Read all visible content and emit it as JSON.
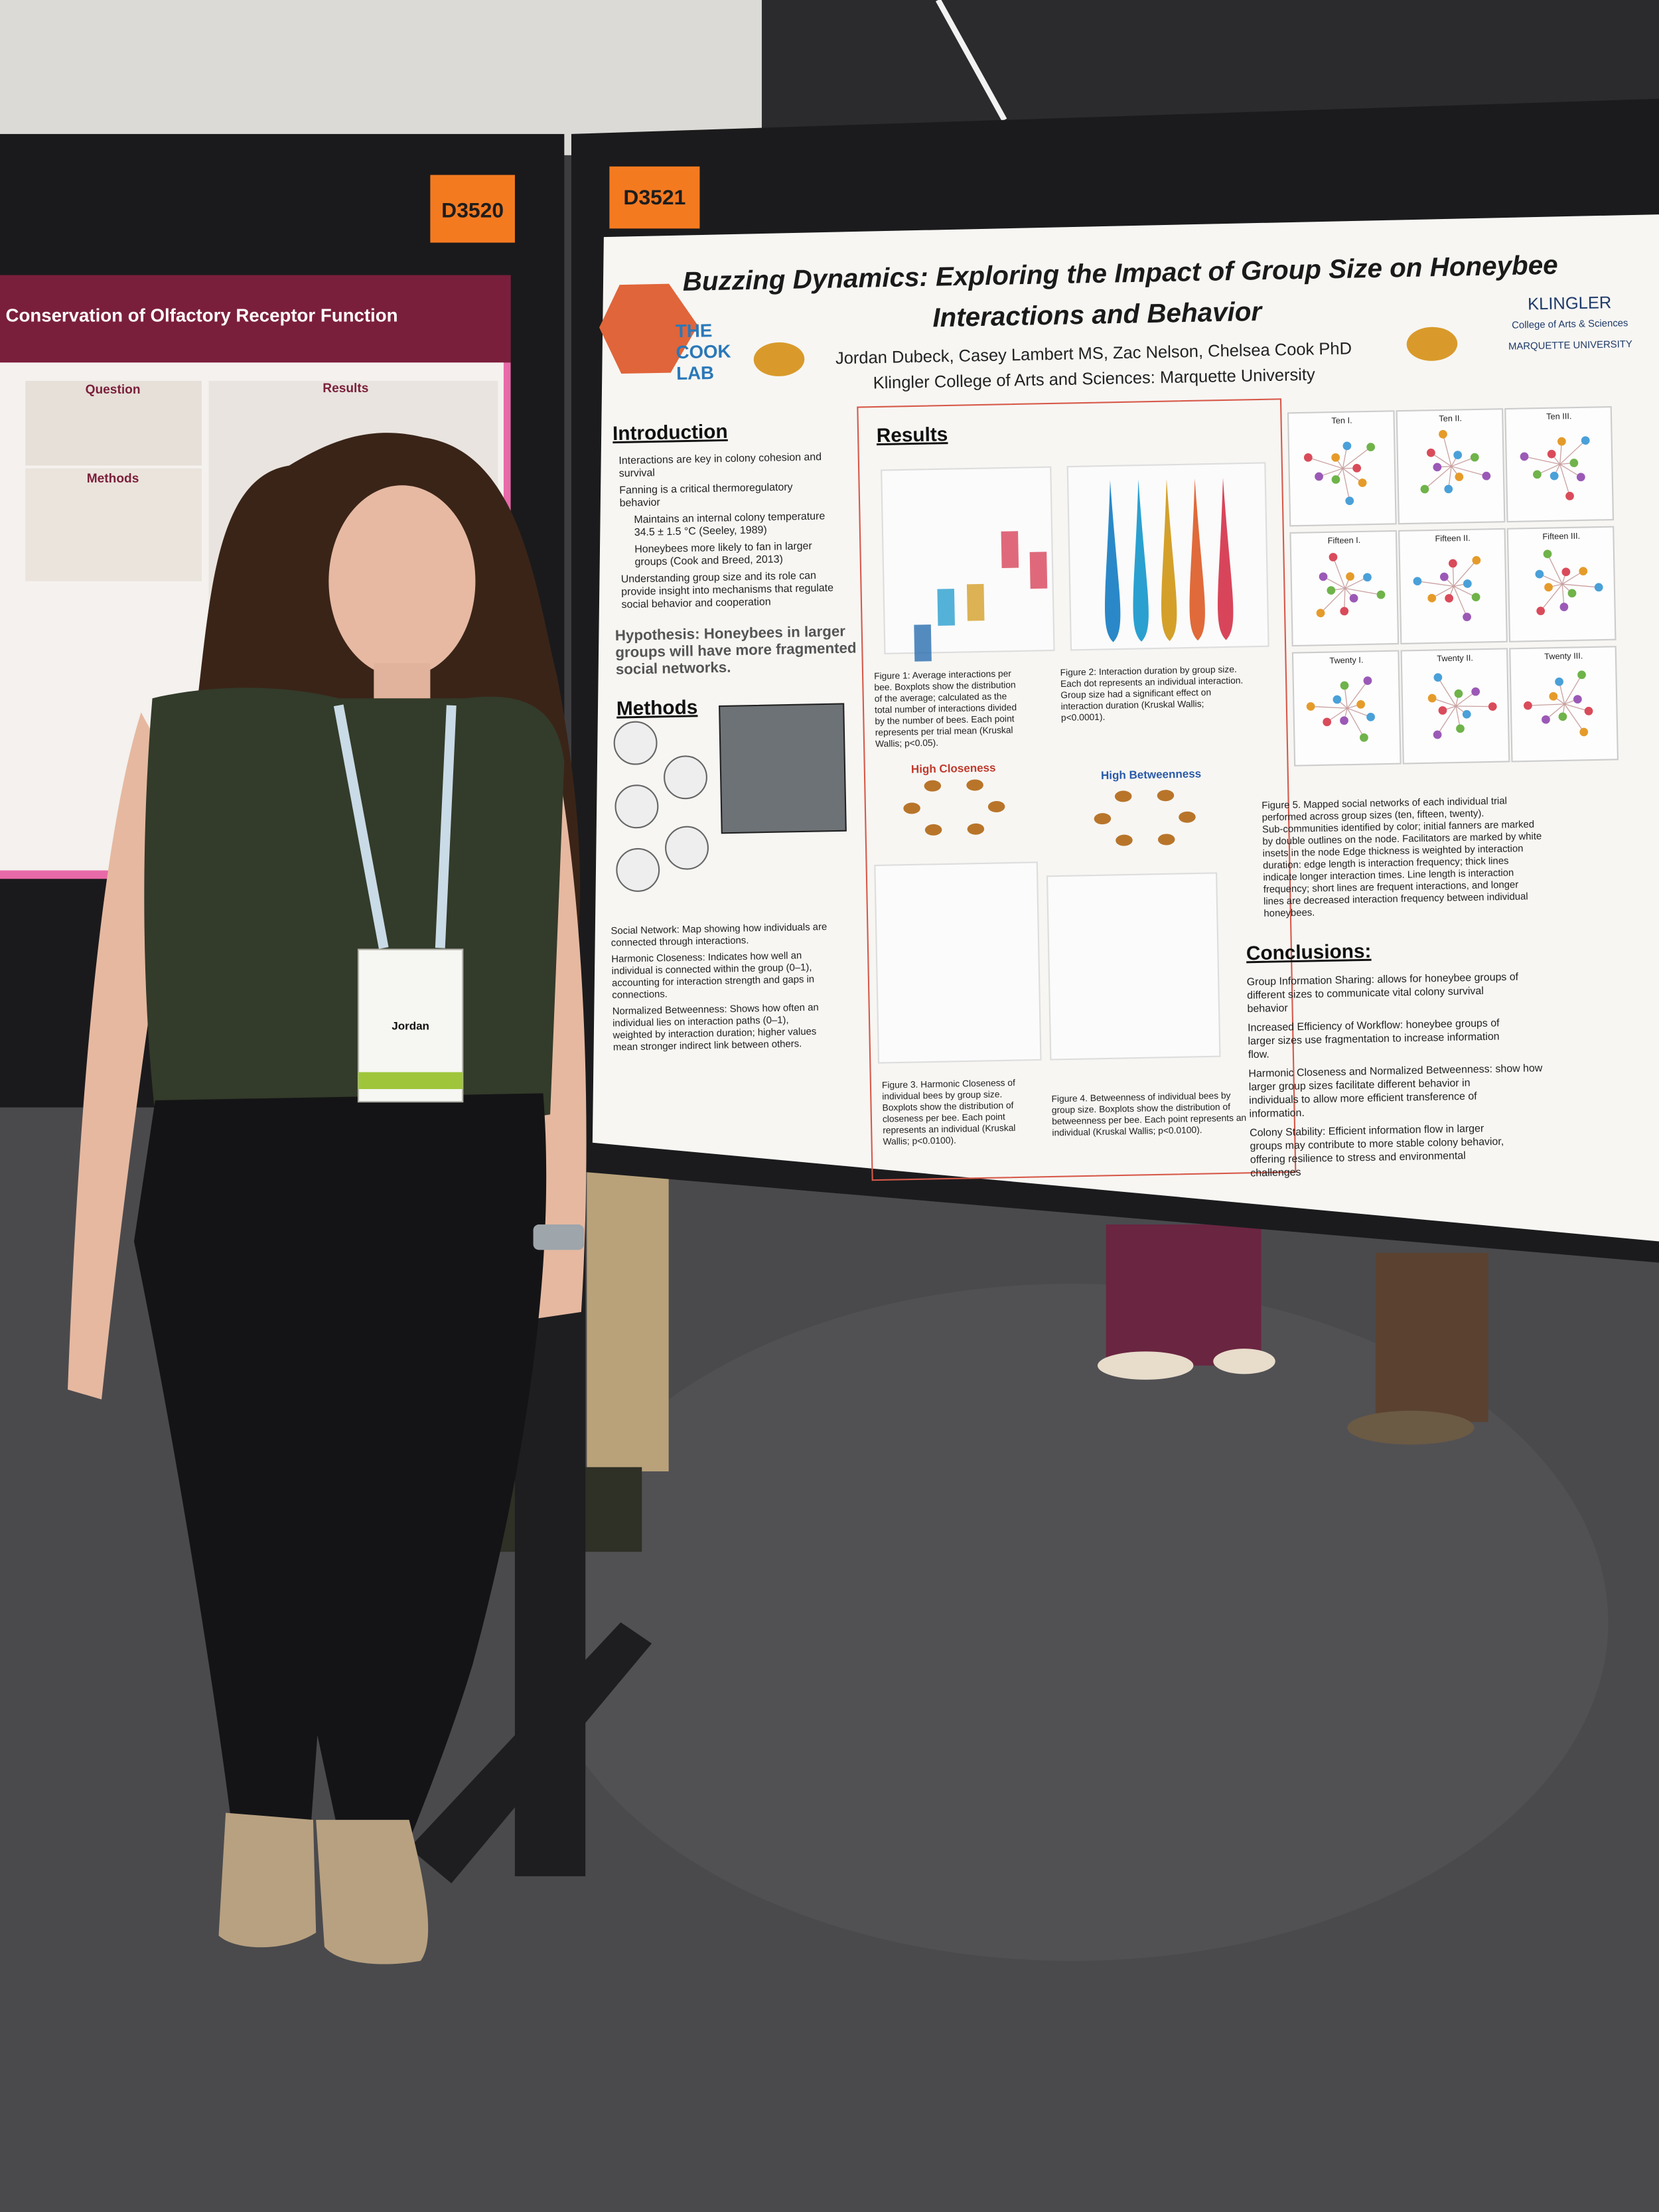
{
  "booths": {
    "left": "D3520",
    "right": "D3521"
  },
  "left_poster": {
    "title": "Conservation of Olfactory Receptor Function",
    "headings": [
      "Question",
      "Results",
      "Methods"
    ]
  },
  "poster": {
    "title": [
      "Buzzing Dynamics:  Exploring the Impact of Group Size on Honeybee",
      "Interactions and Behavior"
    ],
    "authors": "Jordan Dubeck, Casey Lambert MS, Zac Nelson, Chelsea Cook PhD",
    "affiliation": "Klingler College of Arts and Sciences: Marquette University",
    "logo": [
      "THE",
      "COOK",
      "LAB"
    ],
    "school": [
      "KLINGLER",
      "College of Arts & Sciences",
      "MARQUETTE UNIVERSITY"
    ],
    "introduction": {
      "heading": "Introduction",
      "items": [
        "Interactions are key in colony cohesion and survival",
        "Fanning is a critical thermoregulatory behavior",
        "Maintains an internal colony temperature 34.5 ± 1.5 °C (Seeley, 1989)",
        "Honeybees more likely to fan in larger groups (Cook and Breed, 2013)",
        "Understanding group size and its role can provide insight into mechanisms that regulate social behavior and cooperation"
      ]
    },
    "hypothesis": "Hypothesis: Honeybees in larger groups will have more fragmented social networks.",
    "methods": {
      "heading": "Methods",
      "items": [
        "Social Network: Map showing how individuals are connected through interactions.",
        "Harmonic Closeness: Indicates how well an individual is connected within the group (0–1), accounting for interaction strength and gaps in connections.",
        "Normalized Betweenness: Shows how often an individual lies on interaction paths (0–1), weighted by interaction duration; higher values mean stronger indirect link between others."
      ]
    },
    "results": {
      "heading": "Results",
      "labels": [
        "High Closeness",
        "High Betweenness"
      ],
      "captions": [
        "Figure 1: Average interactions per bee. Boxplots show the distribution of the average; calculated as the total number of interactions divided by the number of bees. Each point represents per trial mean (Kruskal Wallis; p<0.05).",
        "Figure 2: Interaction duration by group size. Each dot represents an individual interaction. Group size had a significant effect on interaction duration (Kruskal Wallis; p<0.0001).",
        "Figure 3. Harmonic Closeness of individual bees by group size. Boxplots show the distribution of closeness per bee. Each point represents an individual (Kruskal Wallis; p<0.0100).",
        "Figure 4. Betweenness of individual bees by group size. Boxplots show the distribution of betweenness per bee. Each point represents an individual (Kruskal Wallis; p<0.0100).",
        "Figure 5. Mapped social networks of each individual trial performed across group sizes (ten, fifteen, twenty). Sub-communities identified by color; initial fanners are marked by double outlines on the node. Facilitators are marked by white insets in the node Edge thickness is weighted by interaction duration: edge length is interaction frequency; thick lines indicate longer interaction times. Line length is interaction frequency; short lines are frequent interactions, and longer lines are decreased interaction frequency between individual honeybees."
      ],
      "networks": [
        "Ten I.",
        "Ten II.",
        "Ten III.",
        "Fifteen I.",
        "Fifteen II.",
        "Fifteen III.",
        "Twenty I.",
        "Twenty II.",
        "Twenty III."
      ]
    },
    "conclusions": {
      "heading": "Conclusions:",
      "items": [
        "Group Information Sharing: allows for honeybee groups of different sizes to communicate vital colony survival behavior",
        "Increased Efficiency of Workflow: honeybee groups of larger sizes use fragmentation to increase information flow.",
        "Harmonic Closeness and Normalized Betweenness: show how larger group sizes facilitate different behavior in individuals to allow more efficient transference of information.",
        "Colony Stability: Efficient information flow in larger groups may contribute to more stable colony behavior, offering resilience to stress and environmental challenges"
      ]
    }
  },
  "badge": {
    "name": "Jordan"
  }
}
